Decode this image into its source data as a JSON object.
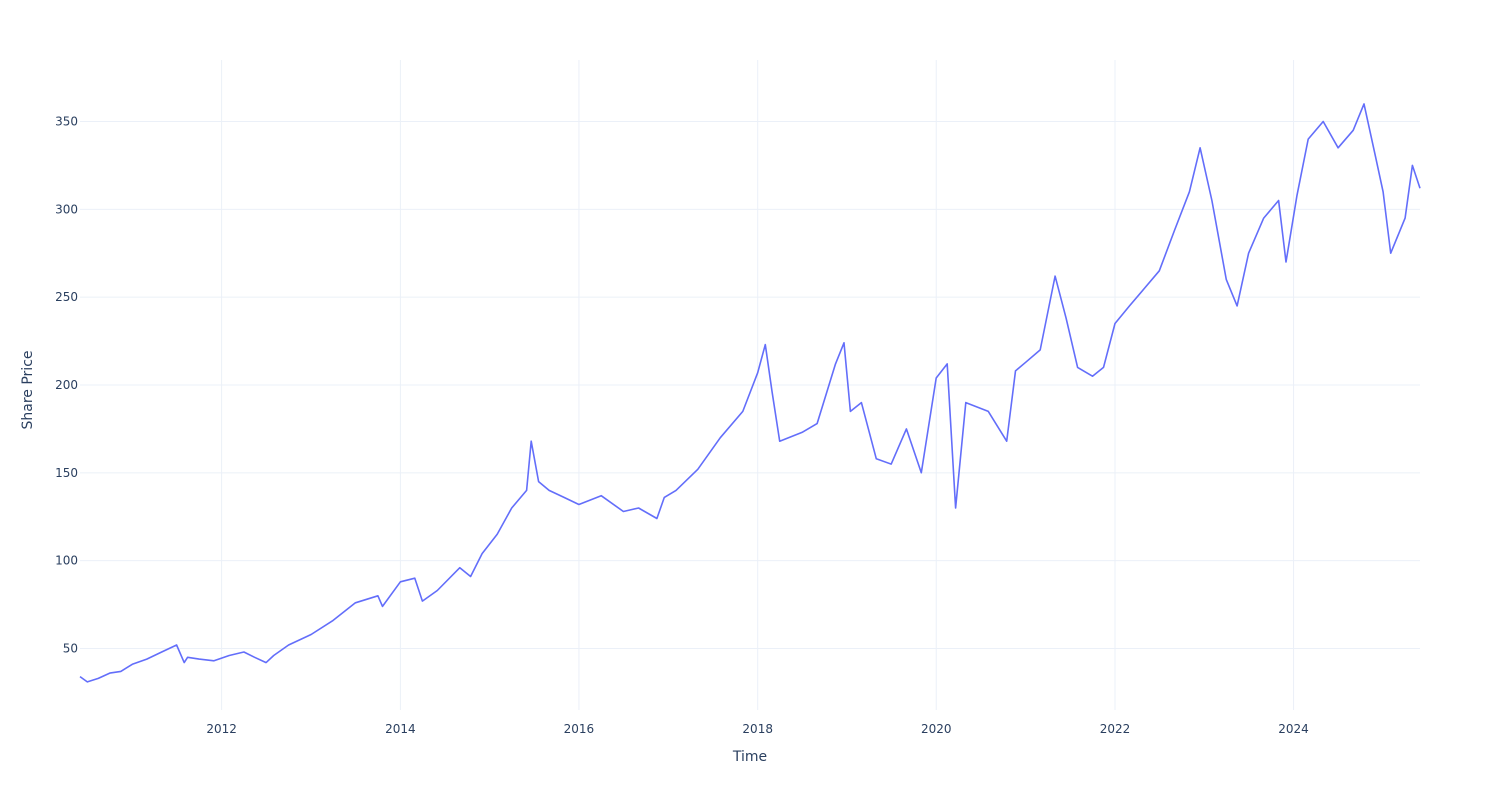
{
  "chart_data": {
    "type": "line",
    "xlabel": "Time",
    "ylabel": "Share Price",
    "xlim": [
      "2010-06-01",
      "2025-06-01"
    ],
    "ylim": [
      15,
      385
    ],
    "x_ticks": [
      "2012",
      "2014",
      "2016",
      "2018",
      "2020",
      "2022",
      "2024"
    ],
    "y_ticks": [
      50,
      100,
      150,
      200,
      250,
      300,
      350
    ],
    "grid": true,
    "legend": "none",
    "line_color": "#636efa",
    "series": [
      {
        "x": [
          "2010-06-01",
          "2010-07-01",
          "2010-08-15",
          "2010-10-01",
          "2010-11-15",
          "2011-01-01",
          "2011-03-01",
          "2011-05-01",
          "2011-07-01",
          "2011-08-01",
          "2011-08-15",
          "2011-10-01",
          "2011-12-01",
          "2012-02-01",
          "2012-04-01",
          "2012-05-15",
          "2012-07-01",
          "2012-08-01",
          "2012-10-01",
          "2013-01-01",
          "2013-04-01",
          "2013-07-01",
          "2013-10-01",
          "2013-10-20",
          "2014-01-01",
          "2014-03-01",
          "2014-04-01",
          "2014-06-01",
          "2014-09-01",
          "2014-10-15",
          "2014-12-01",
          "2015-02-01",
          "2015-04-01",
          "2015-06-01",
          "2015-06-20",
          "2015-07-20",
          "2015-09-01",
          "2015-11-01",
          "2016-01-01",
          "2016-04-01",
          "2016-07-01",
          "2016-09-01",
          "2016-11-15",
          "2016-12-15",
          "2017-02-01",
          "2017-05-01",
          "2017-08-01",
          "2017-11-01",
          "2018-01-01",
          "2018-02-01",
          "2018-03-01",
          "2018-04-01",
          "2018-07-01",
          "2018-09-01",
          "2018-11-15",
          "2018-12-20",
          "2019-01-15",
          "2019-03-01",
          "2019-05-01",
          "2019-07-01",
          "2019-09-01",
          "2019-11-01",
          "2020-01-01",
          "2020-02-15",
          "2020-03-20",
          "2020-05-01",
          "2020-08-01",
          "2020-10-15",
          "2020-11-20",
          "2021-01-01",
          "2021-03-01",
          "2021-05-01",
          "2021-06-15",
          "2021-08-01",
          "2021-10-01",
          "2021-11-15",
          "2022-01-01",
          "2022-03-01",
          "2022-05-01",
          "2022-07-01",
          "2022-09-01",
          "2022-11-01",
          "2022-12-15",
          "2023-02-01",
          "2023-04-01",
          "2023-05-15",
          "2023-07-01",
          "2023-09-01",
          "2023-11-01",
          "2023-12-01",
          "2024-01-15",
          "2024-03-01",
          "2024-05-01",
          "2024-07-01",
          "2024-09-01",
          "2024-10-15",
          "2024-12-01",
          "2025-01-01",
          "2025-02-01",
          "2025-04-01",
          "2025-05-01",
          "2025-06-01"
        ],
        "values": [
          34,
          31,
          33,
          36,
          37,
          41,
          44,
          48,
          52,
          42,
          45,
          44,
          43,
          46,
          48,
          45,
          42,
          46,
          52,
          58,
          66,
          76,
          80,
          74,
          88,
          90,
          77,
          83,
          96,
          91,
          104,
          115,
          130,
          140,
          168,
          145,
          140,
          136,
          132,
          137,
          128,
          130,
          124,
          136,
          140,
          152,
          170,
          185,
          207,
          223,
          196,
          168,
          173,
          178,
          212,
          224,
          185,
          190,
          158,
          155,
          175,
          150,
          204,
          212,
          130,
          190,
          185,
          168,
          208,
          213,
          220,
          262,
          238,
          210,
          205,
          210,
          235,
          245,
          255,
          265,
          288,
          310,
          335,
          305,
          260,
          245,
          275,
          295,
          305,
          270,
          308,
          340,
          350,
          335,
          345,
          360,
          330,
          310,
          275,
          295,
          325,
          312
        ]
      }
    ]
  }
}
